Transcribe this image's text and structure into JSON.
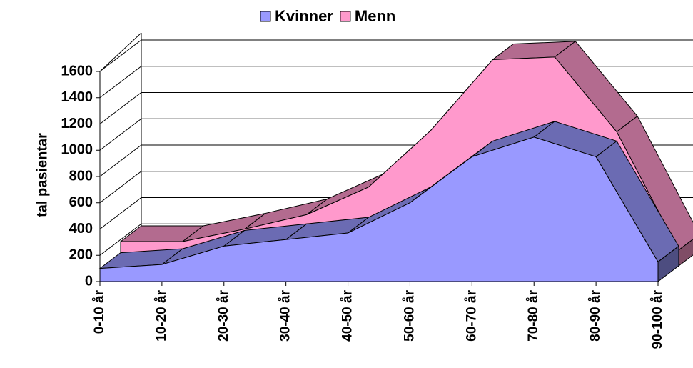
{
  "chart_data": {
    "type": "area3d",
    "y_label": "tal pasientar",
    "categories": [
      "0-10 år",
      "10-20 år",
      "20-30 år",
      "30-40 år",
      "40-50 år",
      "50-60 år",
      "60-70 år",
      "70-80 år",
      "80-90 år",
      "90-100 år"
    ],
    "series": [
      {
        "name": "Kvinner",
        "color": "#9999ff",
        "values": [
          100,
          130,
          270,
          320,
          370,
          600,
          950,
          1100,
          950,
          150
        ]
      },
      {
        "name": "Menn",
        "color": "#ff99cc",
        "values": [
          185,
          185,
          280,
          390,
          600,
          1030,
          1570,
          1590,
          1020,
          120
        ]
      }
    ],
    "ylim": [
      0,
      1600
    ],
    "yticks": [
      0,
      200,
      400,
      600,
      800,
      1000,
      1200,
      1400,
      1600
    ],
    "grid": true
  }
}
